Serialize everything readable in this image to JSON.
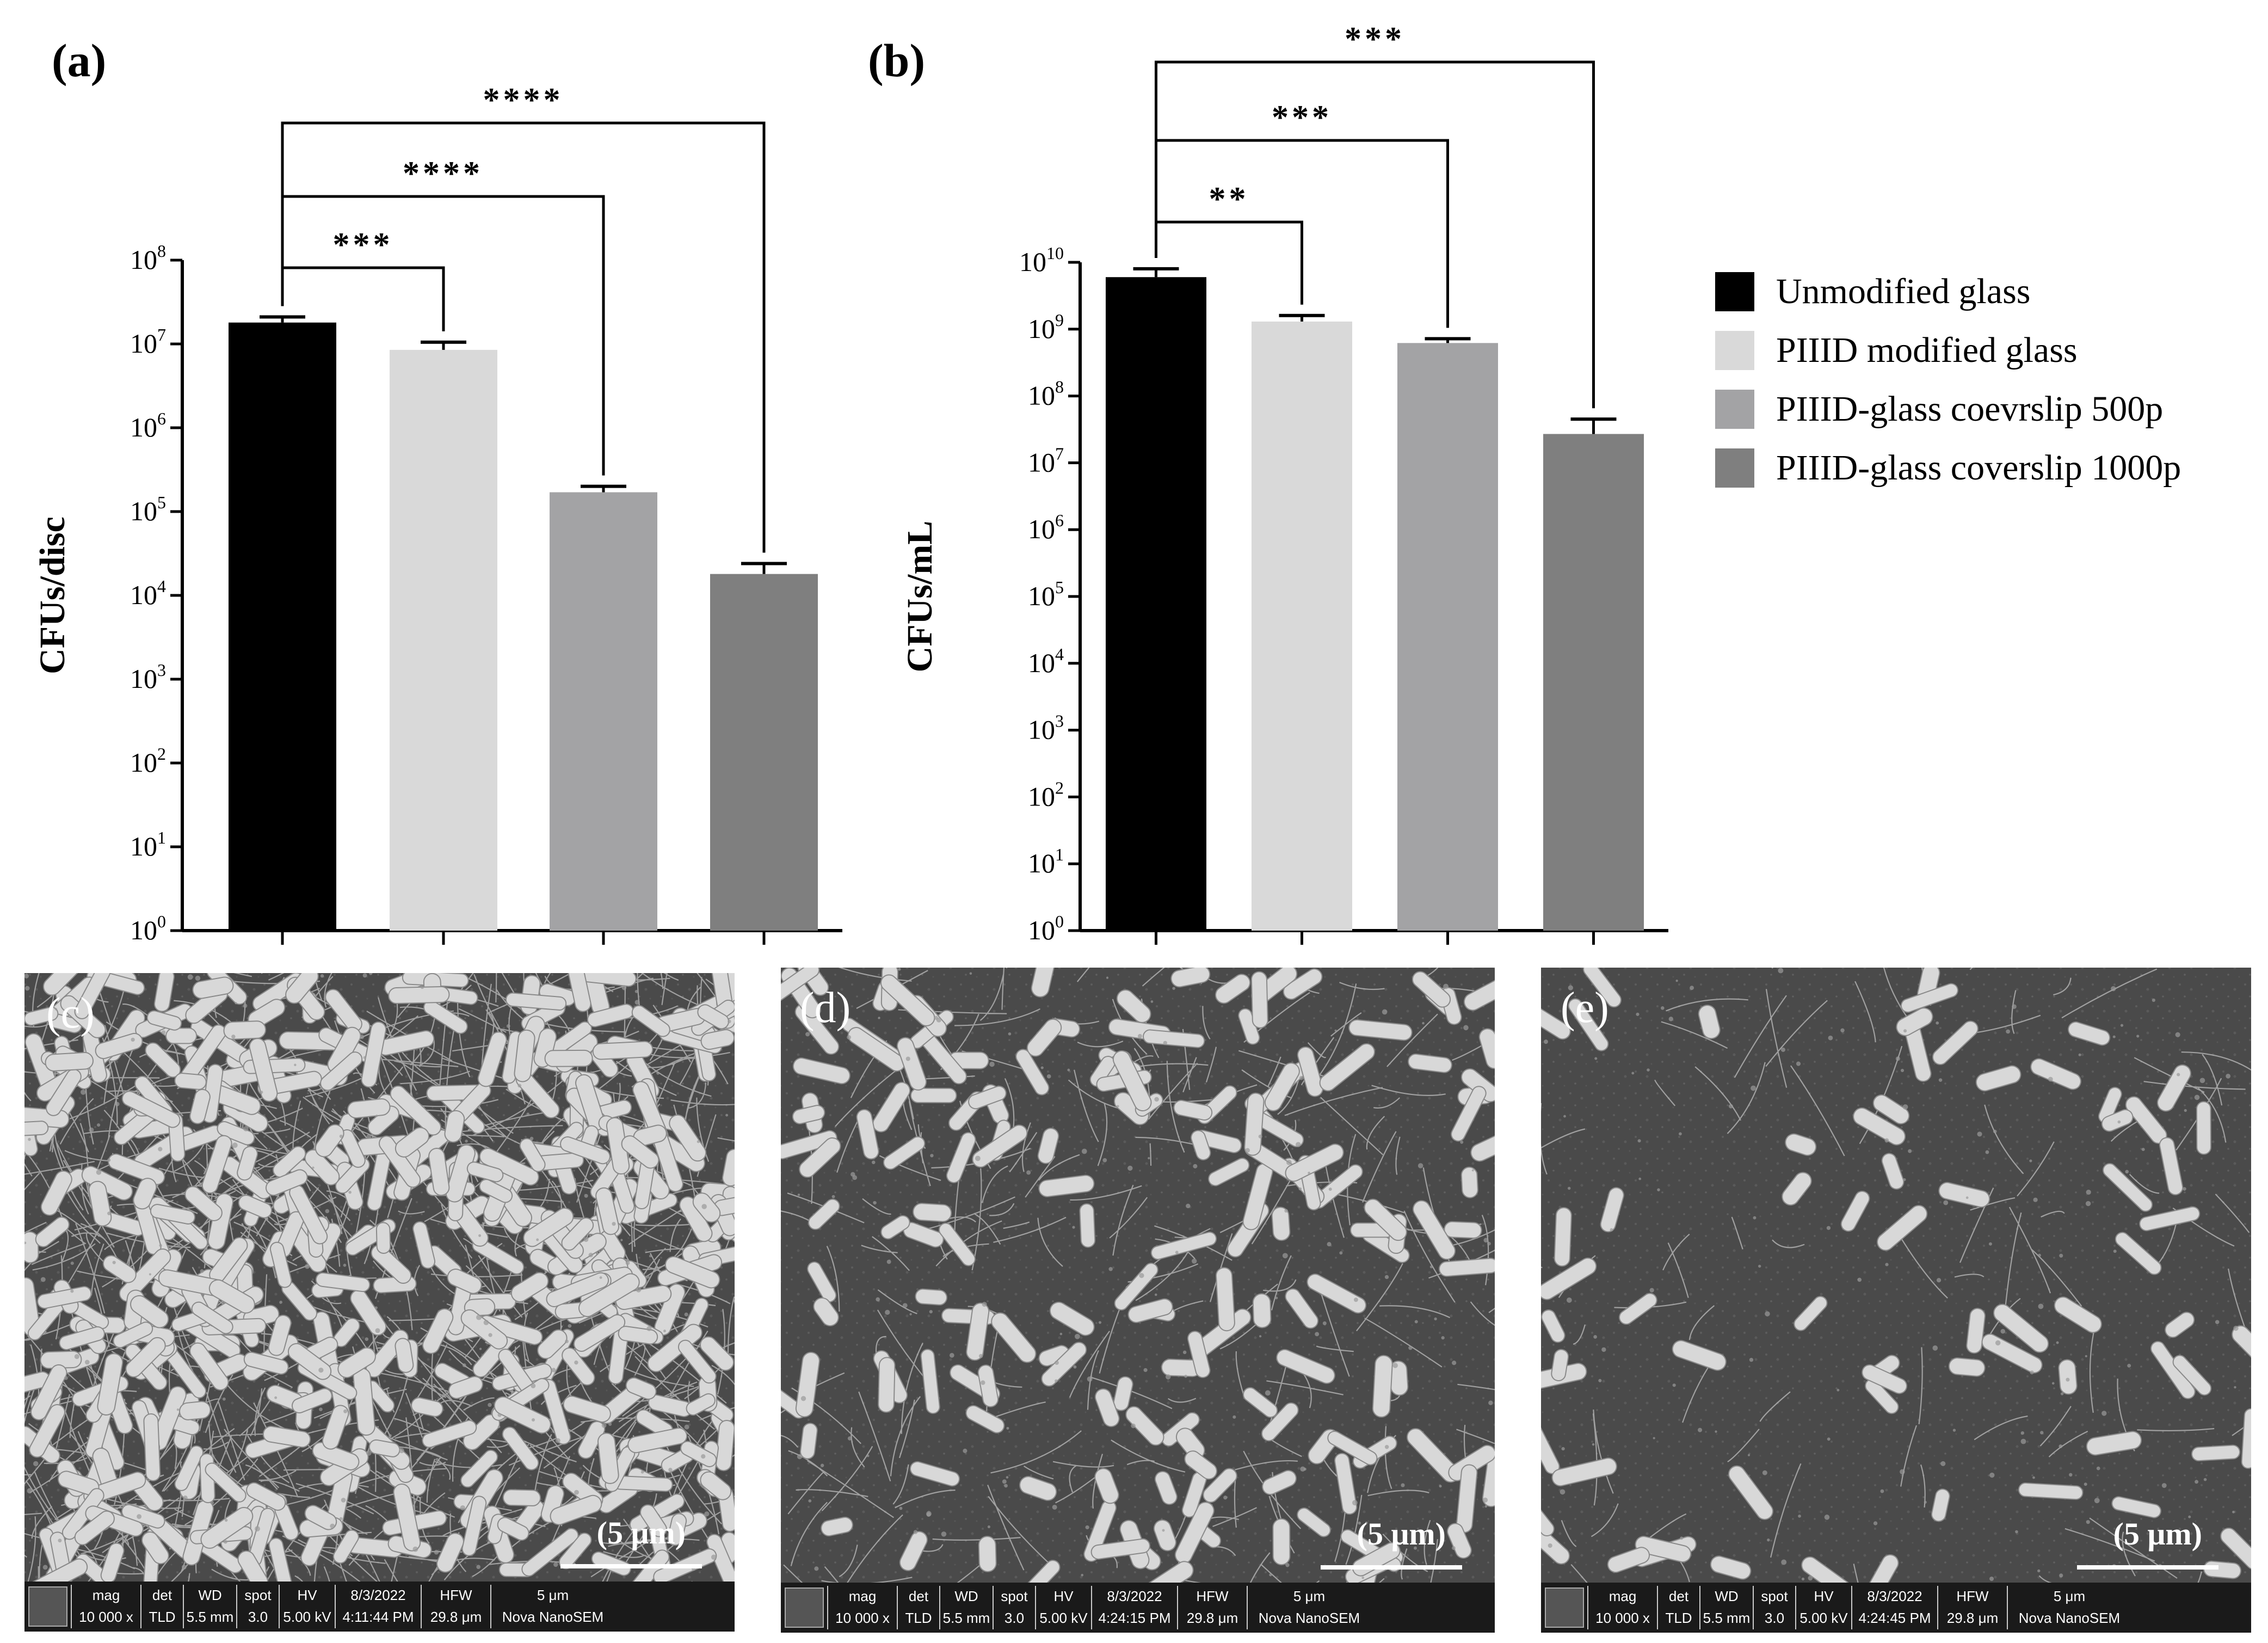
{
  "colors": {
    "unmodified": "#000000",
    "piiid_modified": "#d9d9d9",
    "piiid_500p": "#a3a3a5",
    "piiid_1000p": "#7f7f7f",
    "sem_background": "#4a4a4a",
    "sem_bacteria": "#d4d4d4",
    "sem_info_bar": "#1a1a1a"
  },
  "legend": {
    "placement": "right",
    "items": [
      {
        "label": "Unmodified glass",
        "color": "#000000"
      },
      {
        "label": "PIIID modified glass",
        "color": "#d9d9d9"
      },
      {
        "label": "PIIID-glass coevrslip 500p",
        "color": "#a3a3a5"
      },
      {
        "label": "PIIID-glass coverslip 1000p",
        "color": "#7f7f7f"
      }
    ]
  },
  "chart_data": [
    {
      "type": "bar",
      "panel_label": "(a)",
      "ylabel": "CFUs/disc",
      "yscale": "log",
      "ylim": [
        1,
        100000000
      ],
      "yticks": [
        {
          "base": "10",
          "exp": "0"
        },
        {
          "base": "10",
          "exp": "1"
        },
        {
          "base": "10",
          "exp": "2"
        },
        {
          "base": "10",
          "exp": "3"
        },
        {
          "base": "10",
          "exp": "4"
        },
        {
          "base": "10",
          "exp": "5"
        },
        {
          "base": "10",
          "exp": "6"
        },
        {
          "base": "10",
          "exp": "7"
        },
        {
          "base": "10",
          "exp": "8"
        }
      ],
      "categories": [
        "Unmodified glass",
        "PIIID modified glass",
        "PIIID-glass coevrslip 500p",
        "PIIID-glass coverslip 1000p"
      ],
      "values": [
        18000000,
        8500000,
        170000,
        18000
      ],
      "error_upper": [
        21000000,
        10500000,
        200000,
        24000
      ],
      "significance": [
        {
          "from": 0,
          "to": 1,
          "label": "***"
        },
        {
          "from": 0,
          "to": 2,
          "label": "****"
        },
        {
          "from": 0,
          "to": 3,
          "label": "****"
        }
      ]
    },
    {
      "type": "bar",
      "panel_label": "(b)",
      "ylabel": "CFUs/mL",
      "yscale": "log",
      "ylim": [
        1,
        10000000000
      ],
      "yticks": [
        {
          "base": "10",
          "exp": "0"
        },
        {
          "base": "10",
          "exp": "1"
        },
        {
          "base": "10",
          "exp": "2"
        },
        {
          "base": "10",
          "exp": "3"
        },
        {
          "base": "10",
          "exp": "4"
        },
        {
          "base": "10",
          "exp": "5"
        },
        {
          "base": "10",
          "exp": "6"
        },
        {
          "base": "10",
          "exp": "7"
        },
        {
          "base": "10",
          "exp": "8"
        },
        {
          "base": "10",
          "exp": "9"
        },
        {
          "base": "10",
          "exp": "10"
        }
      ],
      "categories": [
        "Unmodified glass",
        "PIIID modified glass",
        "PIIID-glass coevrslip 500p",
        "PIIID-glass coverslip 1000p"
      ],
      "values": [
        6000000000,
        1300000000,
        620000000,
        27000000
      ],
      "error_upper": [
        8000000000,
        1600000000,
        720000000,
        45000000
      ],
      "significance": [
        {
          "from": 0,
          "to": 1,
          "label": "**"
        },
        {
          "from": 0,
          "to": 2,
          "label": "***"
        },
        {
          "from": 0,
          "to": 3,
          "label": "***"
        }
      ]
    }
  ],
  "sem_panels": [
    {
      "label": "(c)",
      "scale_label": "(5 μm)",
      "density": "high",
      "info": {
        "headers": [
          "mag",
          "det",
          "WD",
          "spot",
          "HV",
          "8/3/2022",
          "HFW",
          "5 μm"
        ],
        "values": [
          "10 000 x",
          "TLD",
          "5.5 mm",
          "3.0",
          "5.00 kV",
          "4:11:44 PM",
          "29.8 μm",
          "Nova NanoSEM"
        ]
      }
    },
    {
      "label": "(d)",
      "scale_label": "(5 μm)",
      "density": "medium",
      "info": {
        "headers": [
          "mag",
          "det",
          "WD",
          "spot",
          "HV",
          "8/3/2022",
          "HFW",
          "5 μm"
        ],
        "values": [
          "10 000 x",
          "TLD",
          "5.5 mm",
          "3.0",
          "5.00 kV",
          "4:24:15 PM",
          "29.8 μm",
          "Nova NanoSEM"
        ]
      }
    },
    {
      "label": "(e)",
      "scale_label": "(5 μm)",
      "density": "low",
      "info": {
        "headers": [
          "mag",
          "det",
          "WD",
          "spot",
          "HV",
          "8/3/2022",
          "HFW",
          "5 μm"
        ],
        "values": [
          "10 000 x",
          "TLD",
          "5.5 mm",
          "3.0",
          "5.00 kV",
          "4:24:45 PM",
          "29.8 μm",
          "Nova NanoSEM"
        ]
      }
    }
  ]
}
